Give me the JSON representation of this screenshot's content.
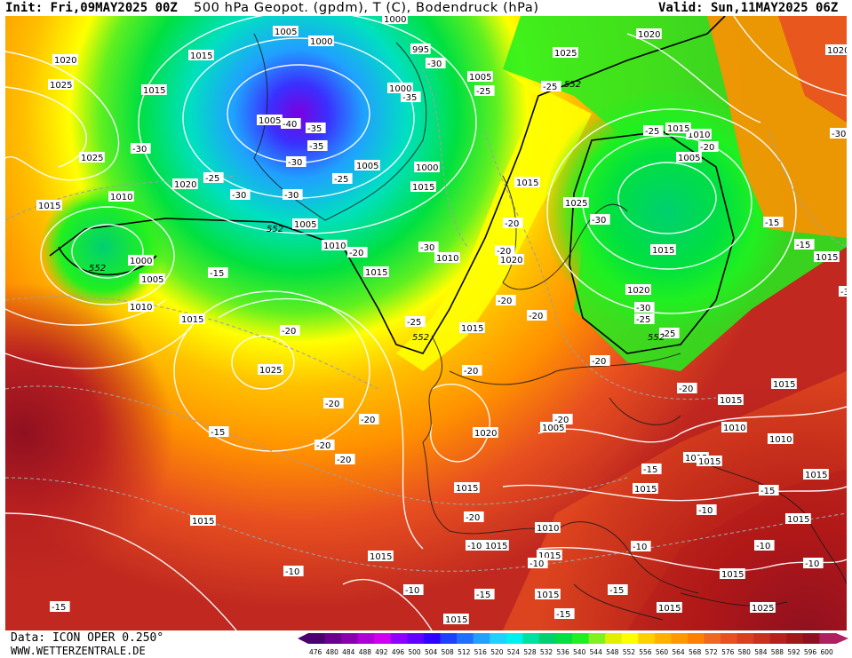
{
  "header": {
    "init": "Init: Fri,09MAY2025 00Z",
    "title": "500 hPa Geopot. (gpdm), T (C), Bodendruck (hPa)",
    "valid": "Valid: Sun,11MAY2025 06Z"
  },
  "footer": {
    "data_source": "Data: ICON OPER 0.250°",
    "website": "WWW.WETTERZENTRALE.DE"
  },
  "colorbar": {
    "ticks": [
      "476",
      "480",
      "484",
      "488",
      "492",
      "496",
      "500",
      "504",
      "508",
      "512",
      "516",
      "520",
      "524",
      "528",
      "532",
      "536",
      "540",
      "544",
      "548",
      "552",
      "556",
      "560",
      "564",
      "568",
      "572",
      "576",
      "580",
      "584",
      "588",
      "592",
      "596",
      "600"
    ],
    "colors": [
      "#4b0070",
      "#6a0090",
      "#8a00b0",
      "#b000d8",
      "#d000f0",
      "#9000ff",
      "#6000ff",
      "#3000ff",
      "#2040ff",
      "#2070ff",
      "#20a0ff",
      "#20d0ff",
      "#00f0f0",
      "#00e0a0",
      "#00d070",
      "#00e040",
      "#20f020",
      "#80f020",
      "#e0f000",
      "#ffff00",
      "#ffd000",
      "#ffb000",
      "#ff9800",
      "#ff8000",
      "#f06820",
      "#e85020",
      "#d84020",
      "#c83020",
      "#b82020",
      "#a01818",
      "#901020",
      "#b02060"
    ]
  },
  "map": {
    "pressure_labels": [
      {
        "t": "1000"
      },
      {
        "t": "1005"
      },
      {
        "t": "1000"
      },
      {
        "t": "995"
      },
      {
        "t": "1015"
      },
      {
        "t": "1020"
      },
      {
        "t": "1025"
      },
      {
        "t": "1015"
      },
      {
        "t": "1005"
      },
      {
        "t": "1000"
      },
      {
        "t": "1005"
      },
      {
        "t": "1025"
      },
      {
        "t": "1020"
      },
      {
        "t": "1015"
      },
      {
        "t": "1025"
      },
      {
        "t": "1020"
      },
      {
        "t": "1010"
      },
      {
        "t": "1015"
      },
      {
        "t": "1000"
      },
      {
        "t": "1005"
      },
      {
        "t": "1005"
      },
      {
        "t": "1015"
      },
      {
        "t": "1010"
      },
      {
        "t": "1000"
      },
      {
        "t": "1005"
      },
      {
        "t": "1005"
      },
      {
        "t": "1010"
      },
      {
        "t": "1010"
      },
      {
        "t": "1015"
      },
      {
        "t": "1015"
      },
      {
        "t": "1025"
      },
      {
        "t": "1020"
      },
      {
        "t": "1015"
      },
      {
        "t": "1025"
      },
      {
        "t": "1015"
      },
      {
        "t": "1020"
      },
      {
        "t": "1010"
      },
      {
        "t": "1005"
      },
      {
        "t": "1015"
      },
      {
        "t": "1020"
      },
      {
        "t": "1015"
      },
      {
        "t": "1015"
      },
      {
        "t": "1015"
      },
      {
        "t": "1020"
      },
      {
        "t": "1010"
      },
      {
        "t": "1015"
      },
      {
        "t": "1015"
      },
      {
        "t": "1010"
      },
      {
        "t": "1015"
      },
      {
        "t": "1010"
      },
      {
        "t": "1015"
      },
      {
        "t": "1015"
      },
      {
        "t": "1015"
      },
      {
        "t": "1015"
      },
      {
        "t": "1015"
      },
      {
        "t": "1025"
      },
      {
        "t": "1015"
      },
      {
        "t": "1015"
      },
      {
        "t": "1015"
      },
      {
        "t": "1015"
      },
      {
        "t": "1015"
      },
      {
        "t": "1015"
      }
    ],
    "temp_labels": [
      {
        "t": "-30"
      },
      {
        "t": "-35"
      },
      {
        "t": "-35"
      },
      {
        "t": "-40"
      },
      {
        "t": "-35"
      },
      {
        "t": "-30"
      },
      {
        "t": "-30"
      },
      {
        "t": "-25"
      },
      {
        "t": "-30"
      },
      {
        "t": "-25"
      },
      {
        "t": "-30"
      },
      {
        "t": "-25"
      },
      {
        "t": "-25"
      },
      {
        "t": "-30"
      },
      {
        "t": "-30"
      },
      {
        "t": "-20"
      },
      {
        "t": "-15"
      },
      {
        "t": "-20"
      },
      {
        "t": "-20"
      },
      {
        "t": "-20"
      },
      {
        "t": "-25"
      },
      {
        "t": "-20"
      },
      {
        "t": "-20"
      },
      {
        "t": "-20"
      },
      {
        "t": "-25"
      },
      {
        "t": "-30"
      },
      {
        "t": "-25"
      },
      {
        "t": "-20"
      },
      {
        "t": "-30"
      },
      {
        "t": "-30"
      },
      {
        "t": "-25"
      },
      {
        "t": "-20"
      },
      {
        "t": "-15"
      },
      {
        "t": "-15"
      },
      {
        "t": "-15"
      },
      {
        "t": "-20"
      },
      {
        "t": "-20"
      },
      {
        "t": "-20"
      },
      {
        "t": "-20"
      },
      {
        "t": "-20"
      },
      {
        "t": "-15"
      },
      {
        "t": "-20"
      },
      {
        "t": "-15"
      },
      {
        "t": "-15"
      },
      {
        "t": "-10"
      },
      {
        "t": "-15"
      },
      {
        "t": "-10"
      },
      {
        "t": "-15"
      },
      {
        "t": "-10"
      },
      {
        "t": "-10"
      },
      {
        "t": "-10"
      },
      {
        "t": "-10"
      },
      {
        "t": "-20"
      },
      {
        "t": "-10"
      },
      {
        "t": "-10"
      },
      {
        "t": "-15"
      }
    ],
    "geopot_labels": [
      {
        "t": "552"
      },
      {
        "t": "552"
      },
      {
        "t": "552"
      },
      {
        "t": "552"
      },
      {
        "t": "552"
      }
    ]
  }
}
